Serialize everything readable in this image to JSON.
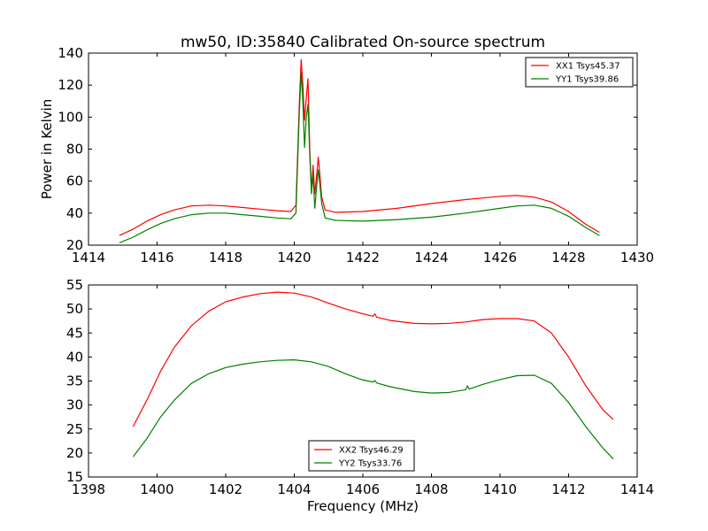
{
  "figure": {
    "title": "mw50, ID:35840 Calibrated On-source spectrum",
    "xlabel": "Frequency (MHz)"
  },
  "chart_data": [
    {
      "type": "line",
      "title": "mw50, ID:35840 Calibrated On-source spectrum",
      "xlabel": "",
      "ylabel": "Power in Kelvin",
      "xlim": [
        1414,
        1430
      ],
      "ylim": [
        20,
        140
      ],
      "xticks": [
        1414,
        1416,
        1418,
        1420,
        1422,
        1424,
        1426,
        1428,
        1430
      ],
      "yticks": [
        20,
        40,
        60,
        80,
        100,
        120,
        140
      ],
      "grid": false,
      "legend_position": "top-right",
      "series": [
        {
          "name": "XX1 Tsys45.37",
          "color": "#ff0000",
          "x": [
            1414.9,
            1415.3,
            1415.7,
            1416.1,
            1416.5,
            1417.0,
            1417.5,
            1418.0,
            1418.5,
            1419.0,
            1419.5,
            1419.9,
            1420.05,
            1420.15,
            1420.2,
            1420.25,
            1420.3,
            1420.35,
            1420.4,
            1420.45,
            1420.5,
            1420.55,
            1420.6,
            1420.65,
            1420.7,
            1420.75,
            1420.8,
            1420.9,
            1421.2,
            1422.0,
            1423.0,
            1424.0,
            1425.0,
            1425.5,
            1426.0,
            1426.5,
            1427.0,
            1427.5,
            1428.0,
            1428.5,
            1428.9
          ],
          "y": [
            26,
            30,
            35,
            39,
            42,
            44.5,
            45,
            44.5,
            43.5,
            42.5,
            41.5,
            41,
            45,
            110,
            136,
            120,
            98,
            112,
            124,
            82,
            55,
            70,
            52,
            63,
            75,
            63,
            50,
            42,
            40.5,
            41,
            43,
            46,
            48.5,
            49.5,
            50.5,
            51,
            50,
            47,
            41,
            33,
            28
          ]
        },
        {
          "name": "YY1 Tsys39.86",
          "color": "#008000",
          "x": [
            1414.9,
            1415.3,
            1415.7,
            1416.1,
            1416.5,
            1417.0,
            1417.5,
            1418.0,
            1418.5,
            1419.0,
            1419.5,
            1419.9,
            1420.05,
            1420.15,
            1420.2,
            1420.25,
            1420.3,
            1420.35,
            1420.4,
            1420.45,
            1420.5,
            1420.55,
            1420.6,
            1420.65,
            1420.7,
            1420.75,
            1420.8,
            1420.9,
            1421.2,
            1422.0,
            1423.0,
            1424.0,
            1425.0,
            1425.5,
            1426.0,
            1426.5,
            1427.0,
            1427.5,
            1428.0,
            1428.5,
            1428.9
          ],
          "y": [
            21.5,
            25,
            29.5,
            33.5,
            36.5,
            39,
            40,
            40,
            39,
            38,
            37,
            36.5,
            40,
            104,
            128,
            110,
            81,
            100,
            108,
            78,
            52,
            64,
            43,
            56,
            67,
            57,
            46,
            37,
            35.5,
            35,
            36,
            37.5,
            40,
            41.5,
            43,
            44.5,
            45,
            43,
            38,
            31,
            26
          ]
        }
      ]
    },
    {
      "type": "line",
      "title": "",
      "xlabel": "Frequency (MHz)",
      "ylabel": "",
      "xlim": [
        1398,
        1414
      ],
      "ylim": [
        15,
        55
      ],
      "xticks": [
        1398,
        1400,
        1402,
        1404,
        1406,
        1408,
        1410,
        1412,
        1414
      ],
      "yticks": [
        15,
        20,
        25,
        30,
        35,
        40,
        45,
        50,
        55
      ],
      "grid": false,
      "legend_position": "bottom-center",
      "series": [
        {
          "name": "XX2 Tsys46.29",
          "color": "#ff0000",
          "x": [
            1399.3,
            1399.7,
            1400.1,
            1400.5,
            1401.0,
            1401.5,
            1402.0,
            1402.5,
            1403.0,
            1403.5,
            1404.0,
            1404.5,
            1405.0,
            1405.5,
            1406.0,
            1406.3,
            1406.35,
            1406.4,
            1406.8,
            1407.5,
            1408.0,
            1408.5,
            1409.0,
            1409.5,
            1410.0,
            1410.5,
            1411.0,
            1411.5,
            1412.0,
            1412.5,
            1413.0,
            1413.3
          ],
          "y": [
            25.5,
            31,
            37,
            42,
            46.5,
            49.5,
            51.5,
            52.5,
            53.2,
            53.5,
            53.3,
            52.5,
            51.2,
            50,
            49,
            48.5,
            49,
            48.3,
            47.6,
            47,
            46.9,
            47,
            47.3,
            47.8,
            48,
            48,
            47.5,
            45,
            40,
            34,
            29,
            27
          ]
        },
        {
          "name": "YY2 Tsys33.76",
          "color": "#008000",
          "x": [
            1399.3,
            1399.7,
            1400.1,
            1400.5,
            1401.0,
            1401.5,
            1402.0,
            1402.5,
            1403.0,
            1403.5,
            1404.0,
            1404.5,
            1405.0,
            1405.5,
            1406.0,
            1406.3,
            1406.35,
            1406.4,
            1406.8,
            1407.5,
            1408.0,
            1408.5,
            1409.0,
            1409.05,
            1409.1,
            1409.5,
            1410.0,
            1410.5,
            1411.0,
            1411.5,
            1412.0,
            1412.5,
            1413.0,
            1413.3
          ],
          "y": [
            19.2,
            23,
            27.5,
            31,
            34.5,
            36.5,
            37.8,
            38.5,
            39,
            39.3,
            39.4,
            39,
            38,
            36.5,
            35.2,
            34.8,
            35.1,
            34.6,
            33.8,
            32.8,
            32.5,
            32.6,
            33.2,
            34,
            33.3,
            34.3,
            35.3,
            36.1,
            36.2,
            34.5,
            30.5,
            25.5,
            21,
            18.8
          ]
        }
      ]
    }
  ]
}
